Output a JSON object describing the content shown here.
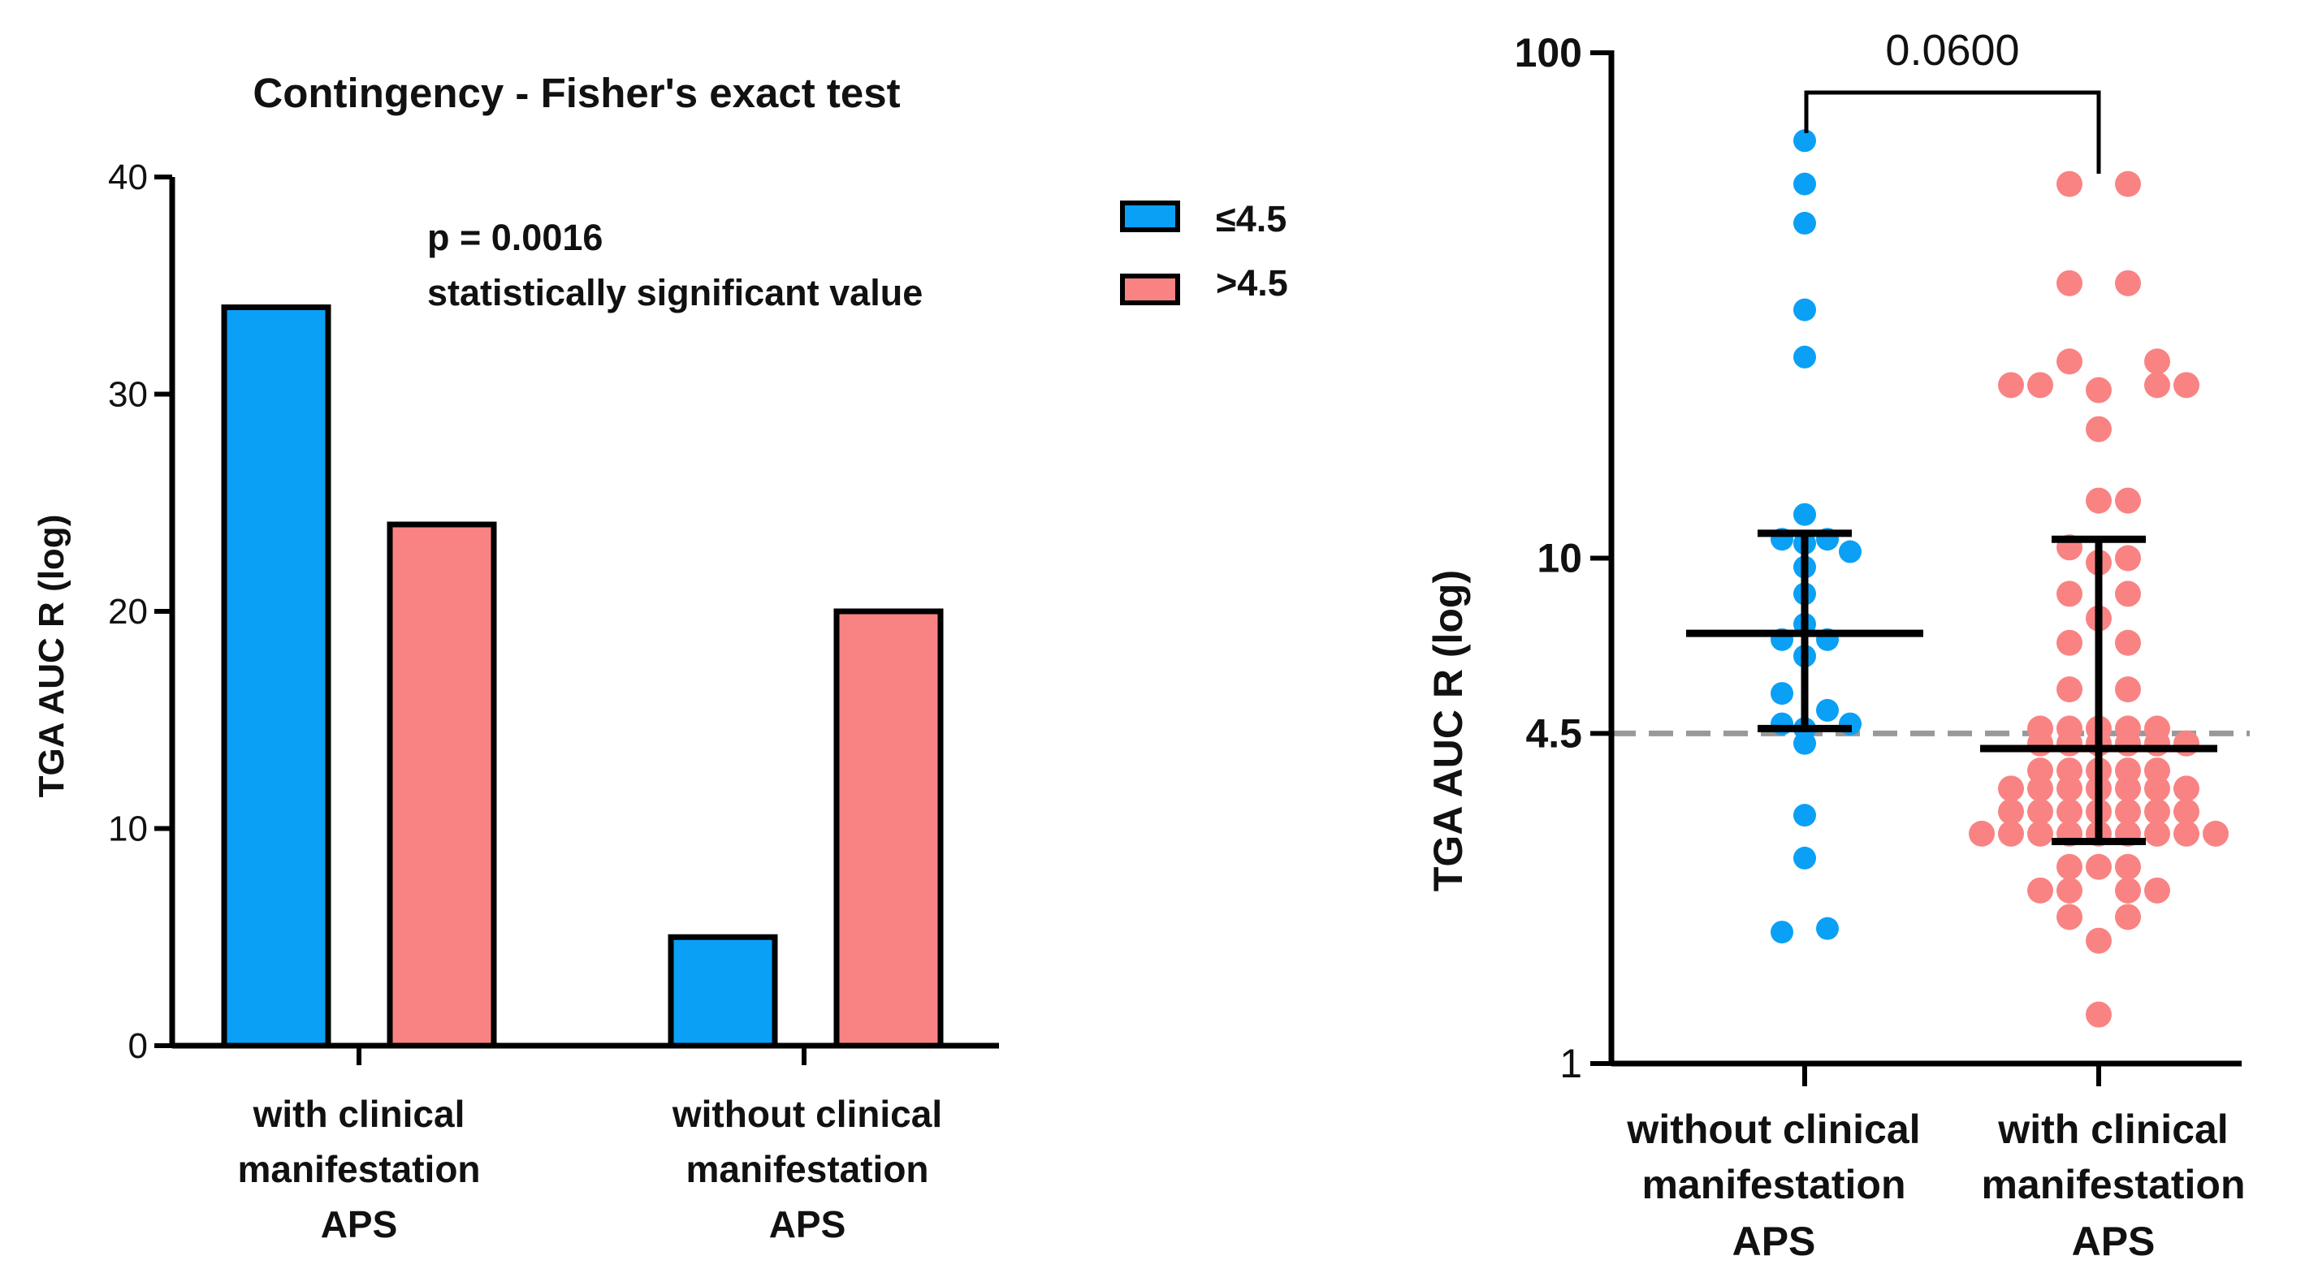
{
  "colors": {
    "low": "#0aa0f6",
    "high": "#f98383",
    "axis": "#000000",
    "threshold": "#999999"
  },
  "chart_data": [
    {
      "type": "bar",
      "title": "Contingency - Fisher's exact test",
      "ylabel": "TGA AUC R (log)",
      "xlabel": "",
      "ylim": [
        0,
        40
      ],
      "yticks": [
        "0",
        "10",
        "20",
        "30",
        "40"
      ],
      "categories": [
        [
          "with clinical",
          "manifestation",
          "APS"
        ],
        [
          "without clinical",
          "manifestation",
          "APS"
        ]
      ],
      "series": [
        {
          "name": "≤4.5",
          "values": [
            34,
            5
          ]
        },
        {
          "name": ">4.5",
          "values": [
            24,
            20
          ]
        }
      ],
      "legend_position": "top-right",
      "annotation": [
        "p = 0.0016",
        "statistically significant value"
      ]
    },
    {
      "type": "scatter",
      "scale": "log",
      "ylabel": "TGA AUC R (log)",
      "ylim": [
        1,
        100
      ],
      "yticks": [
        "1",
        "4.5",
        "10",
        "100"
      ],
      "reference_line": 4.5,
      "categories": [
        [
          "without clinical",
          "manifestation",
          "APS"
        ],
        [
          "with clinical",
          "manifestation",
          "APS"
        ]
      ],
      "comparison": {
        "label": "0.0600",
        "between": [
          0,
          1
        ]
      },
      "groups": [
        {
          "name": "without clinical manifestation APS",
          "median": 7.1,
          "q1": 4.6,
          "q3": 11.2,
          "points": [
            [
              0,
              67
            ],
            [
              0,
              55
            ],
            [
              0,
              46
            ],
            [
              0,
              31
            ],
            [
              0,
              25
            ],
            [
              0,
              12.2
            ],
            [
              -1,
              10.9
            ],
            [
              1,
              10.9
            ],
            [
              0,
              10.7
            ],
            [
              2,
              10.3
            ],
            [
              0,
              9.6
            ],
            [
              0,
              8.5
            ],
            [
              0,
              7.4
            ],
            [
              -1,
              6.9
            ],
            [
              1,
              6.9
            ],
            [
              0,
              6.4
            ],
            [
              -1,
              5.4
            ],
            [
              1,
              5.0
            ],
            [
              -1,
              4.7
            ],
            [
              2,
              4.7
            ],
            [
              0,
              4.6
            ],
            [
              0,
              4.3
            ],
            [
              0,
              3.1
            ],
            [
              0,
              2.55
            ],
            [
              -1,
              1.82
            ],
            [
              1,
              1.85
            ]
          ]
        },
        {
          "name": "with clinical manifestation APS",
          "median": 4.2,
          "q1": 2.75,
          "q3": 10.9,
          "points": [
            [
              -1,
              55
            ],
            [
              1,
              55
            ],
            [
              -1,
              35
            ],
            [
              1,
              35
            ],
            [
              -1,
              24.5
            ],
            [
              2,
              24.5
            ],
            [
              -3,
              22
            ],
            [
              -2,
              22
            ],
            [
              0,
              21.5
            ],
            [
              2,
              22
            ],
            [
              3,
              22
            ],
            [
              0,
              18
            ],
            [
              0,
              13
            ],
            [
              1,
              13
            ],
            [
              -1,
              10.5
            ],
            [
              0,
              9.8
            ],
            [
              1,
              10
            ],
            [
              -1,
              8.5
            ],
            [
              1,
              8.5
            ],
            [
              0,
              7.6
            ],
            [
              -1,
              6.8
            ],
            [
              1,
              6.8
            ],
            [
              -1,
              5.5
            ],
            [
              1,
              5.5
            ],
            [
              -2,
              4.6
            ],
            [
              -1,
              4.6
            ],
            [
              0,
              4.6
            ],
            [
              1,
              4.6
            ],
            [
              2,
              4.6
            ],
            [
              -2,
              4.3
            ],
            [
              -1,
              4.3
            ],
            [
              0,
              4.3
            ],
            [
              1,
              4.3
            ],
            [
              2,
              4.3
            ],
            [
              3,
              4.3
            ],
            [
              -2,
              3.8
            ],
            [
              -1,
              3.8
            ],
            [
              0,
              3.8
            ],
            [
              1,
              3.8
            ],
            [
              2,
              3.8
            ],
            [
              -3,
              3.5
            ],
            [
              -2,
              3.5
            ],
            [
              -1,
              3.5
            ],
            [
              0,
              3.5
            ],
            [
              1,
              3.5
            ],
            [
              2,
              3.5
            ],
            [
              3,
              3.5
            ],
            [
              -3,
              3.15
            ],
            [
              -2,
              3.15
            ],
            [
              -1,
              3.15
            ],
            [
              0,
              3.15
            ],
            [
              1,
              3.15
            ],
            [
              2,
              3.15
            ],
            [
              3,
              3.15
            ],
            [
              -4,
              2.85
            ],
            [
              -3,
              2.85
            ],
            [
              -2,
              2.85
            ],
            [
              -1,
              2.85
            ],
            [
              0,
              2.85
            ],
            [
              1,
              2.85
            ],
            [
              2,
              2.85
            ],
            [
              3,
              2.85
            ],
            [
              4,
              2.85
            ],
            [
              -1,
              2.45
            ],
            [
              0,
              2.45
            ],
            [
              1,
              2.45
            ],
            [
              -2,
              2.2
            ],
            [
              -1,
              2.2
            ],
            [
              1,
              2.2
            ],
            [
              2,
              2.2
            ],
            [
              -1,
              1.95
            ],
            [
              1,
              1.95
            ],
            [
              0,
              1.75
            ],
            [
              0,
              1.25
            ]
          ]
        }
      ]
    }
  ]
}
